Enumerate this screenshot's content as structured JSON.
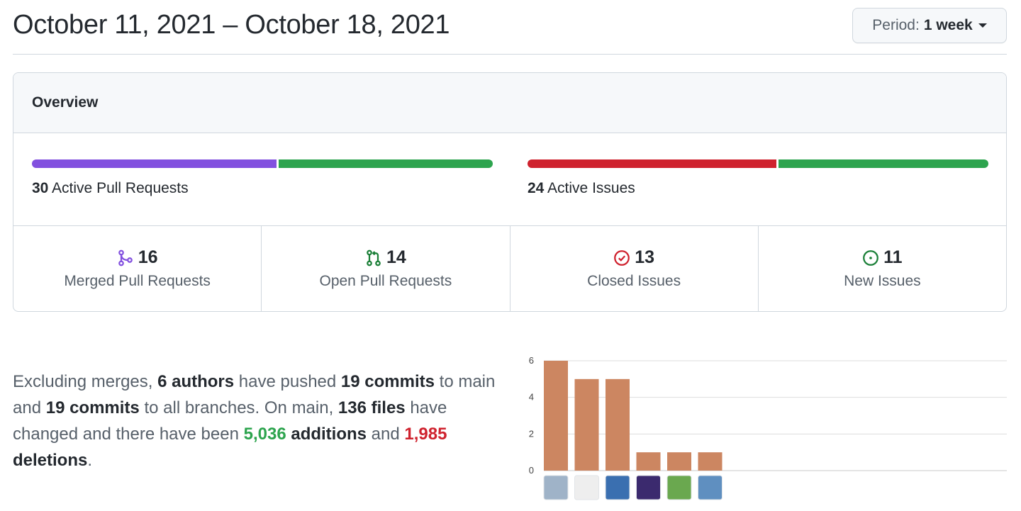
{
  "header": {
    "title": "October 11, 2021 – October 18, 2021",
    "period_label": "Period:",
    "period_value": "1 week"
  },
  "overview": {
    "title": "Overview",
    "pull_requests": {
      "count": "30",
      "label": "Active Pull Requests",
      "merged_fraction": 0.533,
      "open_fraction": 0.467,
      "merged_color": "#8250df",
      "open_color": "#2da44e"
    },
    "issues": {
      "count": "24",
      "label": "Active Issues",
      "closed_fraction": 0.542,
      "new_fraction": 0.458,
      "closed_color": "#cf222e",
      "new_color": "#2da44e"
    },
    "stats": [
      {
        "icon": "merged-pr-icon",
        "count": "16",
        "label": "Merged Pull Requests",
        "color": "#8250df"
      },
      {
        "icon": "open-pr-icon",
        "count": "14",
        "label": "Open Pull Requests",
        "color": "#1a7f37"
      },
      {
        "icon": "closed-issue-icon",
        "count": "13",
        "label": "Closed Issues",
        "color": "#cf222e"
      },
      {
        "icon": "new-issue-icon",
        "count": "11",
        "label": "New Issues",
        "color": "#1a7f37"
      }
    ]
  },
  "summary": {
    "p1": "Excluding merges, ",
    "authors": "6 authors",
    "p2": " have pushed ",
    "commits_main": "19 commits",
    "p3": " to main and ",
    "commits_all": "19 commits",
    "p4": " to all branches. On main, ",
    "files": "136 files",
    "p5": " have changed and there have been ",
    "additions_count": "5,036",
    "additions_word": " additions",
    "p6": " and ",
    "deletions_count": "1,985",
    "deletions_word": " deletions",
    "p7": "."
  },
  "chart_data": {
    "type": "bar",
    "categories": [
      "author-1",
      "author-2",
      "author-3",
      "author-4",
      "author-5",
      "author-6"
    ],
    "values": [
      6,
      5,
      5,
      1,
      1,
      1
    ],
    "yticks": [
      "0",
      "2",
      "4",
      "6"
    ],
    "ylim": [
      0,
      6
    ],
    "bar_color": "#cc8661",
    "grid": true,
    "avatar_colors": [
      "#9fb3c8",
      "#eeeeee",
      "#3a6fb0",
      "#3b2a6e",
      "#6aa84f",
      "#5f8fc0"
    ]
  }
}
